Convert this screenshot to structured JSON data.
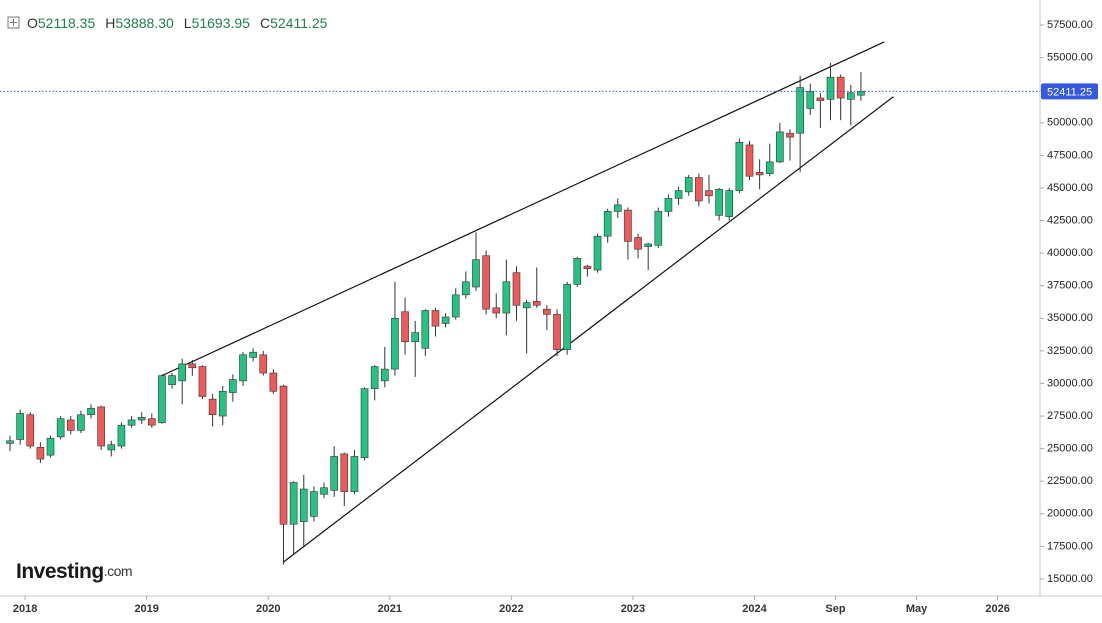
{
  "chart_data": {
    "type": "candlestick",
    "ohlc_legend": [
      {
        "key": "O",
        "text": "52118.35"
      },
      {
        "key": "H",
        "text": "53888.30"
      },
      {
        "key": "L",
        "text": "51693.95"
      },
      {
        "key": "C",
        "text": "52411.25"
      }
    ],
    "watermark": {
      "brand": "Investing",
      "suffix": ".com"
    },
    "categories": [
      null,
      "2018",
      null,
      null,
      null,
      null,
      null,
      null,
      null,
      null,
      null,
      null,
      null,
      "2019",
      null,
      null,
      null,
      null,
      null,
      null,
      null,
      null,
      null,
      null,
      null,
      "2020",
      null,
      null,
      null,
      null,
      null,
      null,
      null,
      null,
      null,
      null,
      null,
      "2021",
      null,
      null,
      null,
      null,
      null,
      null,
      null,
      null,
      null,
      null,
      null,
      "2022",
      null,
      null,
      null,
      null,
      null,
      null,
      null,
      null,
      null,
      null,
      null,
      "2023",
      null,
      null,
      null,
      null,
      null,
      null,
      null,
      null,
      null,
      null,
      null,
      "2024",
      null,
      null,
      null,
      null,
      null,
      null,
      null,
      "Sep",
      null,
      null,
      null,
      null,
      null,
      null,
      null,
      "May",
      null,
      null,
      null,
      null,
      null,
      null,
      null,
      "2026",
      null,
      null,
      null,
      null
    ],
    "open": [
      25400,
      25700,
      27600,
      25100,
      24500,
      25900,
      27200,
      26400,
      27600,
      28200,
      24900,
      25200,
      26800,
      27200,
      27300,
      27000,
      29900,
      30200,
      31500,
      31300,
      28800,
      27500,
      29300,
      30200,
      32000,
      32200,
      30800,
      29800,
      19200,
      19400,
      19800,
      21500,
      21800,
      24600,
      21700,
      24300,
      29600,
      30200,
      31100,
      35500,
      33200,
      32700,
      35600,
      34600,
      35100,
      36800,
      37400,
      39800,
      35800,
      35400,
      38500,
      35800,
      36300,
      35700,
      35300,
      32600,
      37600,
      39000,
      38700,
      41300,
      43200,
      43300,
      41200,
      40500,
      40600,
      43200,
      44200,
      44700,
      45800,
      44800,
      42900,
      42800,
      44800,
      48300,
      46200,
      46100,
      47000,
      49200,
      49200,
      51100,
      51900,
      51800,
      53500,
      51800,
      52118.35,
      null,
      null,
      null,
      null,
      null,
      null,
      null,
      null,
      null,
      null,
      null,
      null,
      null,
      null,
      null,
      null,
      null
    ],
    "high": [
      26000,
      28000,
      27800,
      25500,
      26000,
      27500,
      27500,
      27900,
      28400,
      28300,
      25600,
      27000,
      27500,
      27800,
      27700,
      30700,
      30800,
      31900,
      31800,
      31400,
      29200,
      29800,
      30700,
      32400,
      32700,
      32500,
      31100,
      29900,
      22500,
      23000,
      22100,
      22400,
      25200,
      24700,
      24900,
      29700,
      31400,
      32800,
      37800,
      36600,
      34800,
      35700,
      35800,
      35400,
      37300,
      38600,
      41600,
      40200,
      36900,
      39500,
      39000,
      36400,
      38900,
      36000,
      35700,
      37800,
      39700,
      39100,
      41500,
      43400,
      44200,
      43500,
      41500,
      40800,
      43500,
      44500,
      45100,
      46000,
      46100,
      46000,
      45000,
      45000,
      48800,
      48600,
      47200,
      48400,
      50000,
      49500,
      53600,
      53000,
      52300,
      54600,
      53700,
      52900,
      53888.3,
      null,
      null,
      null,
      null,
      null,
      null,
      null,
      null,
      null,
      null,
      null,
      null,
      null,
      null,
      null,
      null,
      null
    ],
    "low": [
      24800,
      25300,
      25000,
      23900,
      24300,
      25700,
      26100,
      26200,
      27300,
      24900,
      24400,
      25000,
      26600,
      26900,
      26600,
      26900,
      29600,
      28400,
      30600,
      28800,
      26700,
      26800,
      28600,
      29800,
      31700,
      30600,
      29200,
      16100,
      16900,
      17400,
      19400,
      21200,
      21300,
      20600,
      21500,
      24100,
      28700,
      29700,
      30600,
      32200,
      30500,
      32100,
      33600,
      34300,
      34900,
      36500,
      37100,
      35300,
      35000,
      33700,
      34800,
      32300,
      35800,
      34100,
      32100,
      32200,
      37400,
      38200,
      38500,
      40800,
      42700,
      39500,
      39600,
      38700,
      40400,
      42800,
      43700,
      44400,
      43600,
      43800,
      42500,
      42500,
      44600,
      45600,
      44900,
      45900,
      46900,
      47100,
      46200,
      50600,
      49600,
      50200,
      50200,
      49800,
      51693.95,
      null,
      null,
      null,
      null,
      null,
      null,
      null,
      null,
      null,
      null,
      null,
      null,
      null,
      null,
      null,
      null,
      null
    ],
    "close": [
      25600,
      27700,
      25200,
      24200,
      25800,
      27300,
      26400,
      27600,
      28100,
      25200,
      25300,
      26800,
      27200,
      27400,
      26800,
      30600,
      30600,
      31500,
      31200,
      29000,
      27600,
      29400,
      30300,
      32200,
      32400,
      30800,
      29400,
      19200,
      22400,
      21900,
      21700,
      22000,
      24400,
      21700,
      24400,
      29600,
      31300,
      31100,
      35000,
      33200,
      33900,
      35600,
      34400,
      35100,
      36800,
      37800,
      39500,
      35700,
      35400,
      37800,
      36000,
      36200,
      36000,
      35300,
      32600,
      37600,
      39600,
      38800,
      41300,
      43200,
      43700,
      40900,
      40300,
      40700,
      43200,
      44200,
      44800,
      45800,
      44000,
      44400,
      44900,
      44800,
      48500,
      45900,
      46000,
      47000,
      49300,
      48900,
      52700,
      52400,
      51700,
      53500,
      51900,
      52300,
      52411.25,
      null,
      null,
      null,
      null,
      null,
      null,
      null,
      null,
      null,
      null,
      null,
      null,
      null,
      null,
      null,
      null,
      null
    ],
    "up_color": "#26c281",
    "down_color": "#ee5a5a",
    "ylim": [
      13770,
      59420
    ],
    "yticks": [
      {
        "value": 15000,
        "label": "15000.00"
      },
      {
        "value": 17500,
        "label": "17500.00"
      },
      {
        "value": 20000,
        "label": "20000.00"
      },
      {
        "value": 22500,
        "label": "22500.00"
      },
      {
        "value": 25000,
        "label": "25000.00"
      },
      {
        "value": 27500,
        "label": "27500.00"
      },
      {
        "value": 30000,
        "label": "30000.00"
      },
      {
        "value": 32500,
        "label": "32500.00"
      },
      {
        "value": 35000,
        "label": "35000.00"
      },
      {
        "value": 37500,
        "label": "37500.00"
      },
      {
        "value": 40000,
        "label": "40000.00"
      },
      {
        "value": 42500,
        "label": "42500.00"
      },
      {
        "value": 45000,
        "label": "45000.00"
      },
      {
        "value": 47500,
        "label": "47500.00"
      },
      {
        "value": 50000,
        "label": "50000.00"
      },
      {
        "value": 52500,
        "label": "52500.00"
      },
      {
        "value": 55000,
        "label": "55000.00"
      },
      {
        "value": 57500,
        "label": "57500.00"
      }
    ],
    "last_price": {
      "value": 52411.25,
      "label": "52411.25",
      "color": "#3558e0"
    },
    "trendlines": [
      {
        "from": {
          "x": 15,
          "y": 30600
        },
        "to": {
          "x": 86.3,
          "y": 56200
        }
      },
      {
        "from": {
          "x": 27,
          "y": 16300
        },
        "to": {
          "x": 87.2,
          "y": 52000
        }
      }
    ]
  }
}
